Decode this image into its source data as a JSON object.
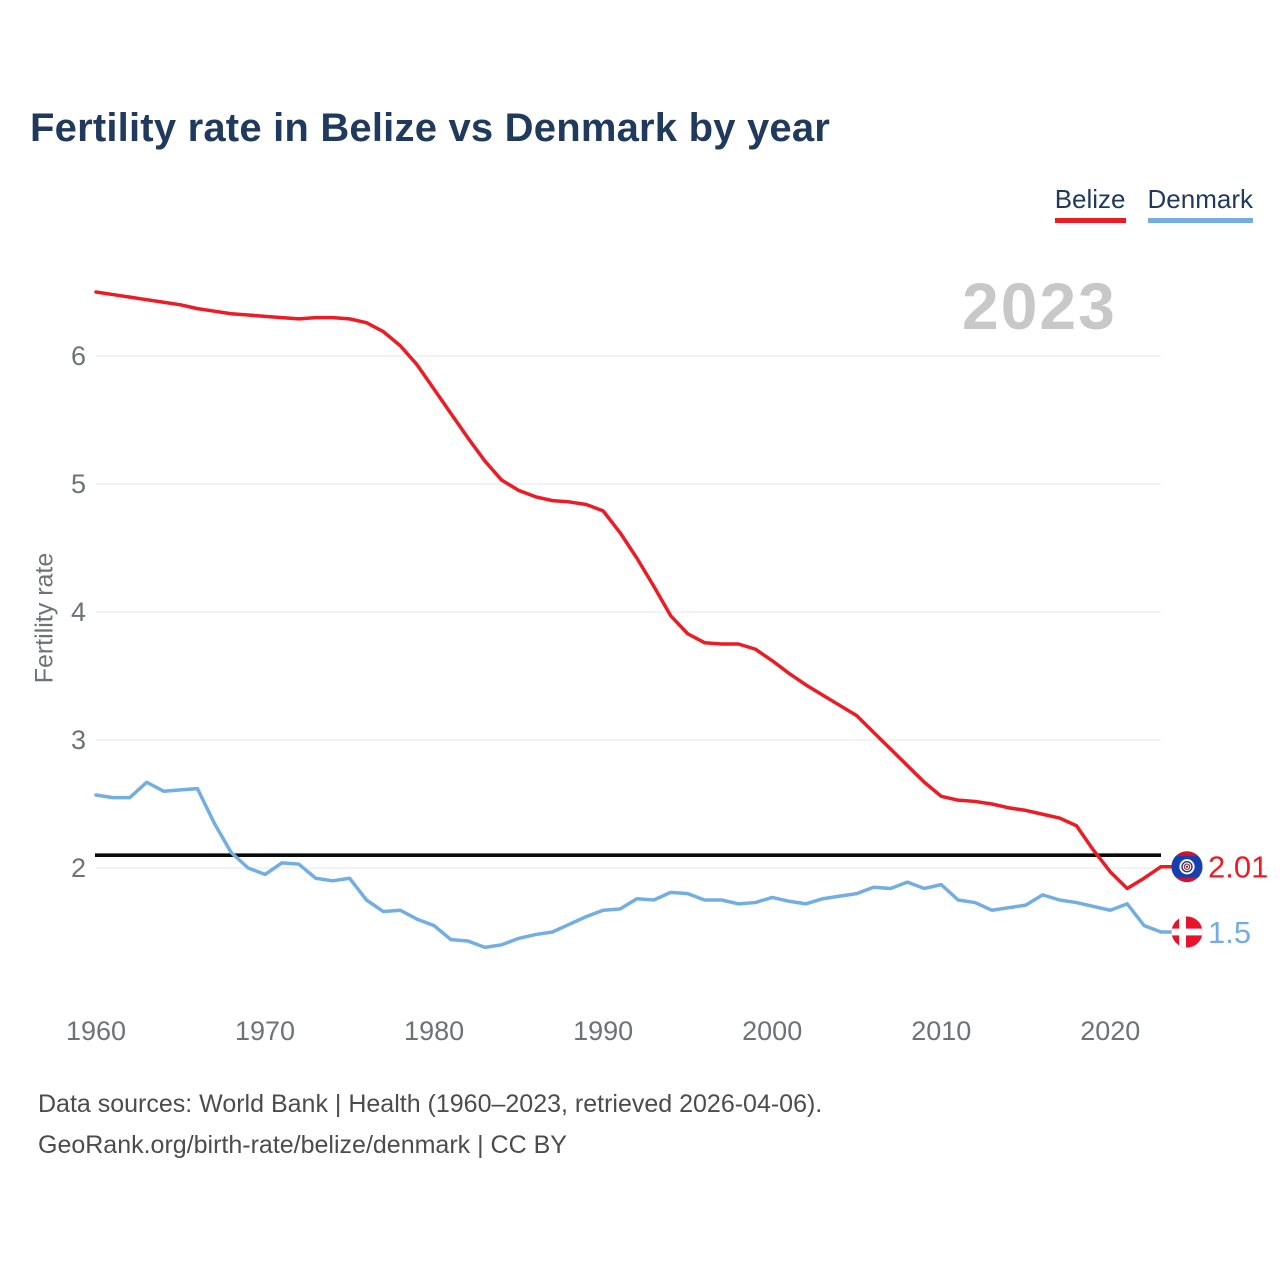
{
  "title": "Fertility rate in Belize vs Denmark by year",
  "watermark": "2023",
  "legend": {
    "items": [
      {
        "label": "Belize",
        "color": "#ed1c24"
      },
      {
        "label": "Denmark",
        "color": "#73aee3"
      }
    ]
  },
  "y_axis": {
    "label": "Fertility rate",
    "ticks": [
      2,
      3,
      4,
      5,
      6
    ]
  },
  "x_axis": {
    "ticks": [
      1960,
      1970,
      1980,
      1990,
      2000,
      2010,
      2020
    ]
  },
  "end_labels": [
    {
      "series": "Belize",
      "text": "2.01",
      "color": "#ed1c24"
    },
    {
      "series": "Denmark",
      "text": "1.5",
      "color": "#73aee3"
    }
  ],
  "footer": {
    "line1": "Data sources: World Bank | Health (1960–2023, retrieved 2026-04-06).",
    "line2": "GeoRank.org/birth-rate/belize/denmark | CC BY"
  },
  "chart_data": {
    "type": "line",
    "title": "Fertility rate in Belize vs Denmark by year",
    "ylabel": "Fertility rate",
    "x_start": 1960,
    "x_end": 2023,
    "ylim": [
      1.2,
      6.8
    ],
    "grid": true,
    "gridline_color": "#ebecec",
    "axis_text_color": "#6e7276",
    "reference_line": {
      "value": 2.1,
      "color": "#0a0a0a"
    },
    "xticks": [
      1960,
      1970,
      1980,
      1990,
      2000,
      2010,
      2020
    ],
    "yticks": [
      2,
      3,
      4,
      5,
      6
    ],
    "series": [
      {
        "name": "Belize",
        "color": "#ed1c24",
        "end_label": "2.01",
        "values": [
          6.5,
          6.48,
          6.46,
          6.44,
          6.42,
          6.4,
          6.37,
          6.35,
          6.33,
          6.32,
          6.31,
          6.3,
          6.29,
          6.3,
          6.3,
          6.29,
          6.26,
          6.19,
          6.08,
          5.93,
          5.74,
          5.55,
          5.36,
          5.18,
          5.03,
          4.95,
          4.9,
          4.87,
          4.86,
          4.84,
          4.79,
          4.62,
          4.42,
          4.2,
          3.97,
          3.83,
          3.76,
          3.75,
          3.75,
          3.71,
          3.62,
          3.52,
          3.43,
          3.35,
          3.27,
          3.19,
          3.06,
          2.93,
          2.8,
          2.67,
          2.56,
          2.53,
          2.52,
          2.5,
          2.47,
          2.45,
          2.42,
          2.39,
          2.33,
          2.14,
          1.97,
          1.84,
          1.92,
          2.01
        ]
      },
      {
        "name": "Denmark",
        "color": "#73aee3",
        "end_label": "1.5",
        "values": [
          2.57,
          2.55,
          2.55,
          2.67,
          2.6,
          2.61,
          2.62,
          2.35,
          2.12,
          2.0,
          1.95,
          2.04,
          2.03,
          1.92,
          1.9,
          1.92,
          1.75,
          1.66,
          1.67,
          1.6,
          1.55,
          1.44,
          1.43,
          1.38,
          1.4,
          1.45,
          1.48,
          1.5,
          1.56,
          1.62,
          1.67,
          1.68,
          1.76,
          1.75,
          1.81,
          1.8,
          1.75,
          1.75,
          1.72,
          1.73,
          1.77,
          1.74,
          1.72,
          1.76,
          1.78,
          1.8,
          1.85,
          1.84,
          1.89,
          1.84,
          1.87,
          1.75,
          1.73,
          1.67,
          1.69,
          1.71,
          1.79,
          1.75,
          1.73,
          1.7,
          1.67,
          1.72,
          1.55,
          1.5
        ]
      }
    ]
  }
}
